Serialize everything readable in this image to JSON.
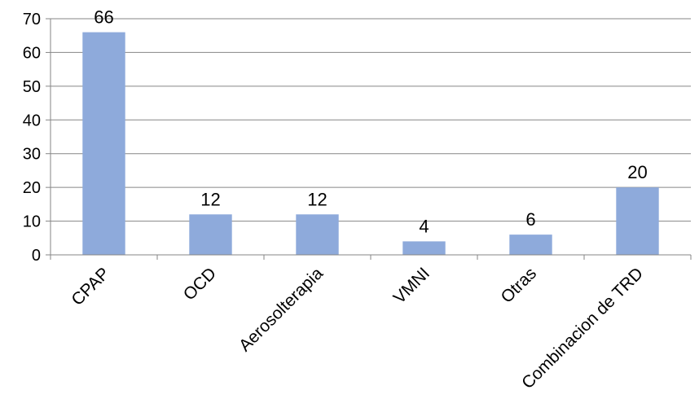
{
  "chart_data": {
    "type": "bar",
    "title": "",
    "xlabel": "",
    "ylabel": "",
    "categories": [
      "CPAP",
      "OCD",
      "Aerosolterapia",
      "VMNI",
      "Otras",
      "Combinacion de TRD"
    ],
    "values": [
      66,
      12,
      12,
      4,
      6,
      20
    ],
    "ylim": [
      0,
      70
    ],
    "yticks": [
      "0",
      "10",
      "20",
      "30",
      "40",
      "50",
      "60",
      "70"
    ],
    "grid": true,
    "legend": "none",
    "colors": {
      "bar": "#8eaadb",
      "grid": "#868686",
      "axis": "#868686"
    }
  }
}
